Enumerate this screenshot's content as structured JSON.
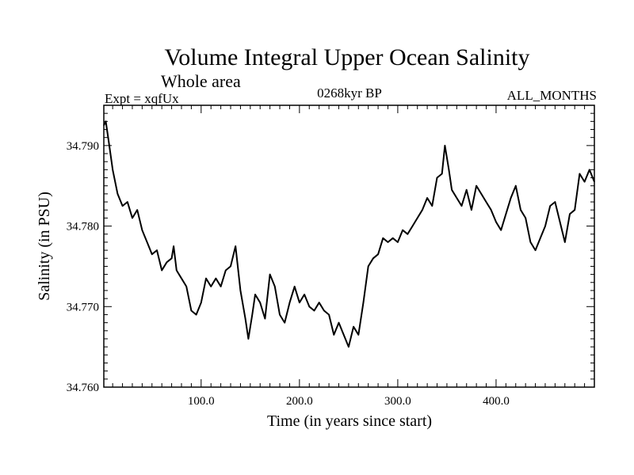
{
  "chart_data": {
    "type": "line",
    "title": "Volume Integral Upper Ocean Salinity",
    "subtitle": "Whole area",
    "left_label": "Expt = xqfUx",
    "center_label": "0268kyr BP",
    "right_label": "ALL_MONTHS",
    "xlabel": "Time (in years since start)",
    "ylabel": "Salinity (in PSU)",
    "xlim": [
      1,
      500
    ],
    "ylim": [
      34.76,
      34.795
    ],
    "x_ticks": [
      100,
      200,
      300,
      400
    ],
    "x_tick_labels": [
      "100.0",
      "200.0",
      "300.0",
      "400.0"
    ],
    "y_ticks": [
      34.76,
      34.77,
      34.78,
      34.79
    ],
    "y_tick_labels": [
      "34.760",
      "34.770",
      "34.780",
      "34.790"
    ],
    "grid": false,
    "series": [
      {
        "name": "salinity",
        "points": [
          [
            1,
            34.7925
          ],
          [
            3,
            34.793
          ],
          [
            6,
            34.7905
          ],
          [
            10,
            34.787
          ],
          [
            15,
            34.784
          ],
          [
            20,
            34.7825
          ],
          [
            25,
            34.783
          ],
          [
            30,
            34.781
          ],
          [
            35,
            34.782
          ],
          [
            40,
            34.7795
          ],
          [
            45,
            34.778
          ],
          [
            50,
            34.7765
          ],
          [
            55,
            34.777
          ],
          [
            60,
            34.7745
          ],
          [
            65,
            34.7755
          ],
          [
            70,
            34.776
          ],
          [
            72,
            34.7775
          ],
          [
            75,
            34.7745
          ],
          [
            80,
            34.7735
          ],
          [
            85,
            34.7725
          ],
          [
            90,
            34.7695
          ],
          [
            95,
            34.769
          ],
          [
            100,
            34.7705
          ],
          [
            105,
            34.7735
          ],
          [
            110,
            34.7725
          ],
          [
            115,
            34.7735
          ],
          [
            120,
            34.7725
          ],
          [
            125,
            34.7745
          ],
          [
            130,
            34.775
          ],
          [
            135,
            34.7775
          ],
          [
            140,
            34.772
          ],
          [
            145,
            34.7685
          ],
          [
            148,
            34.766
          ],
          [
            152,
            34.769
          ],
          [
            155,
            34.7715
          ],
          [
            160,
            34.7705
          ],
          [
            165,
            34.7685
          ],
          [
            170,
            34.774
          ],
          [
            175,
            34.7725
          ],
          [
            180,
            34.769
          ],
          [
            185,
            34.768
          ],
          [
            190,
            34.7705
          ],
          [
            195,
            34.7725
          ],
          [
            200,
            34.7705
          ],
          [
            205,
            34.7715
          ],
          [
            210,
            34.77
          ],
          [
            215,
            34.7695
          ],
          [
            220,
            34.7705
          ],
          [
            225,
            34.7695
          ],
          [
            230,
            34.769
          ],
          [
            235,
            34.7665
          ],
          [
            240,
            34.768
          ],
          [
            245,
            34.7665
          ],
          [
            250,
            34.765
          ],
          [
            255,
            34.7675
          ],
          [
            260,
            34.7665
          ],
          [
            265,
            34.7705
          ],
          [
            270,
            34.775
          ],
          [
            275,
            34.776
          ],
          [
            280,
            34.7765
          ],
          [
            285,
            34.7785
          ],
          [
            290,
            34.778
          ],
          [
            295,
            34.7785
          ],
          [
            300,
            34.778
          ],
          [
            305,
            34.7795
          ],
          [
            310,
            34.779
          ],
          [
            315,
            34.78
          ],
          [
            320,
            34.781
          ],
          [
            325,
            34.782
          ],
          [
            330,
            34.7835
          ],
          [
            335,
            34.7825
          ],
          [
            340,
            34.786
          ],
          [
            345,
            34.7865
          ],
          [
            348,
            34.79
          ],
          [
            352,
            34.787
          ],
          [
            355,
            34.7845
          ],
          [
            360,
            34.7835
          ],
          [
            365,
            34.7825
          ],
          [
            370,
            34.7845
          ],
          [
            375,
            34.782
          ],
          [
            380,
            34.785
          ],
          [
            385,
            34.784
          ],
          [
            390,
            34.783
          ],
          [
            395,
            34.782
          ],
          [
            400,
            34.7805
          ],
          [
            405,
            34.7795
          ],
          [
            410,
            34.7815
          ],
          [
            415,
            34.7835
          ],
          [
            420,
            34.785
          ],
          [
            425,
            34.782
          ],
          [
            430,
            34.781
          ],
          [
            435,
            34.778
          ],
          [
            440,
            34.777
          ],
          [
            445,
            34.7785
          ],
          [
            450,
            34.78
          ],
          [
            455,
            34.7825
          ],
          [
            460,
            34.783
          ],
          [
            465,
            34.7805
          ],
          [
            470,
            34.778
          ],
          [
            475,
            34.7815
          ],
          [
            480,
            34.782
          ],
          [
            485,
            34.7865
          ],
          [
            490,
            34.7855
          ],
          [
            495,
            34.787
          ],
          [
            500,
            34.7855
          ]
        ]
      }
    ]
  }
}
